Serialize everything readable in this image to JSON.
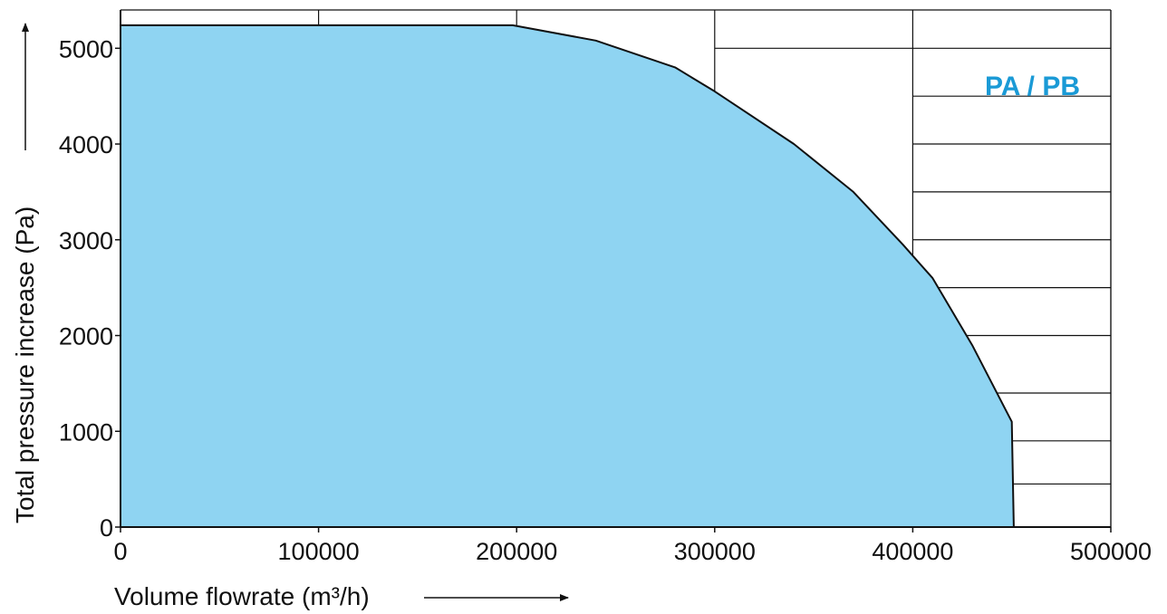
{
  "chart_data": {
    "type": "area",
    "series_label": "PA / PB",
    "xlabel": "Volume flowrate (m³/h)",
    "ylabel": "Total pressure increase (Pa)",
    "xlim": [
      0,
      500000
    ],
    "ylim": [
      0,
      5400
    ],
    "xticks": [
      0,
      100000,
      200000,
      300000,
      400000,
      500000
    ],
    "xtick_labels": [
      "0",
      "100000",
      "200000",
      "300000",
      "400000",
      "500000"
    ],
    "yticks": [
      0,
      1000,
      2000,
      3000,
      4000,
      5000
    ],
    "ytick_labels": [
      "0",
      "1000",
      "2000",
      "3000",
      "4000",
      "5000"
    ],
    "x_gridlines": [
      0,
      100000,
      200000,
      300000,
      400000,
      500000
    ],
    "y_gridlines_full": [
      0,
      5400
    ],
    "y_gridlines_partial": [
      {
        "y": 5000,
        "from_x": 300000
      },
      {
        "y": 4500,
        "from_x": 400000
      },
      {
        "y": 4000,
        "from_x": 400000
      },
      {
        "y": 3500,
        "from_x": 400000
      },
      {
        "y": 3000,
        "from_x": 400000
      },
      {
        "y": 2500,
        "from_x": 400000
      },
      {
        "y": 2000,
        "from_x": 400000
      },
      {
        "y": 1400,
        "from_x": 400000
      },
      {
        "y": 900,
        "from_x": 400000
      },
      {
        "y": 450,
        "from_x": 400000
      }
    ],
    "grid": true,
    "fill_color": "#8fd4f2",
    "label_color": "#1a9ad6",
    "boundary": [
      {
        "x": 0,
        "y": 5240
      },
      {
        "x": 198000,
        "y": 5240
      },
      {
        "x": 240000,
        "y": 5080
      },
      {
        "x": 280000,
        "y": 4800
      },
      {
        "x": 300000,
        "y": 4550
      },
      {
        "x": 340000,
        "y": 4000
      },
      {
        "x": 370000,
        "y": 3500
      },
      {
        "x": 395000,
        "y": 2950
      },
      {
        "x": 410000,
        "y": 2600
      },
      {
        "x": 430000,
        "y": 1900
      },
      {
        "x": 450000,
        "y": 1100
      },
      {
        "x": 451000,
        "y": 0
      }
    ]
  }
}
